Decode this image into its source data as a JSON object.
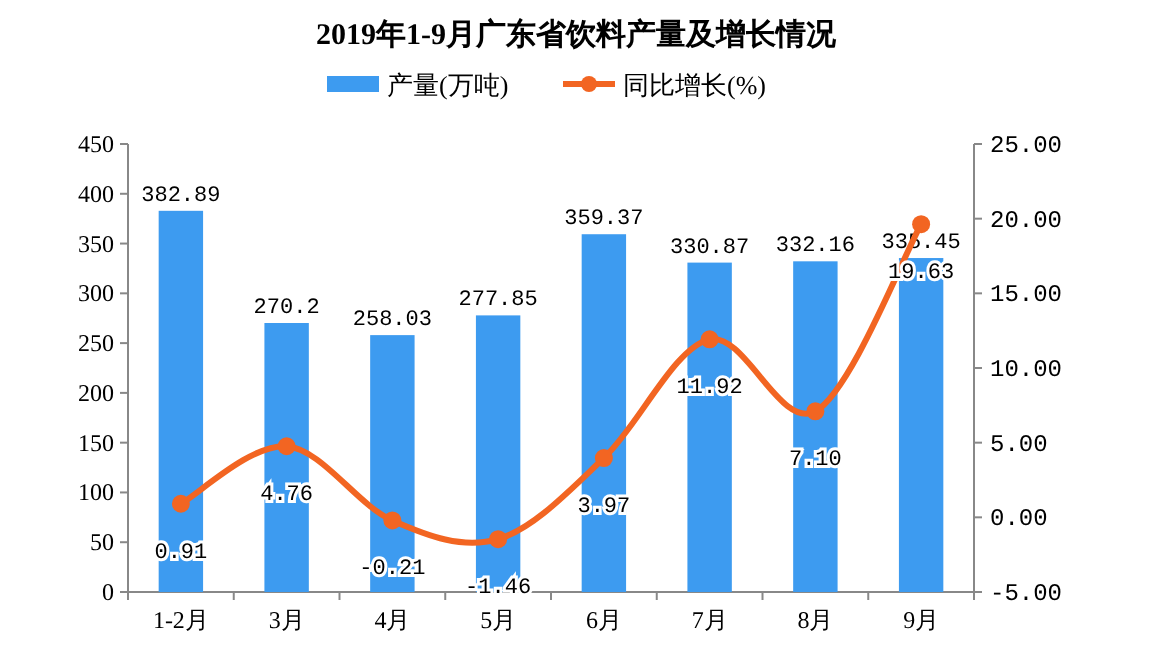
{
  "chart_data": {
    "type": "bar",
    "title": "2019年1-9月广东省饮料产量及增长情况",
    "categories": [
      "1-2月",
      "3月",
      "4月",
      "5月",
      "6月",
      "7月",
      "8月",
      "9月"
    ],
    "series": [
      {
        "name": "产量(万吨)",
        "color": "#3d9bf0",
        "values": [
          382.89,
          270.2,
          258.03,
          277.85,
          359.37,
          330.87,
          332.16,
          335.45
        ]
      },
      {
        "name": "同比增长(%)",
        "type": "line",
        "axis": "y2",
        "color": "#f26522",
        "marker": "circle",
        "values": [
          0.91,
          4.76,
          -0.21,
          -1.46,
          3.97,
          11.92,
          7.1,
          19.63
        ],
        "value_labels": [
          "0.91",
          "4.76",
          "-0.21",
          "-1.46",
          "3.97",
          "11.92",
          "7.10",
          "19.63"
        ]
      }
    ],
    "ylim": [
      0,
      450
    ],
    "yticks": [
      0,
      50,
      100,
      150,
      200,
      250,
      300,
      350,
      400,
      450
    ],
    "y2lim": [
      -5,
      25
    ],
    "y2ticks": [
      {
        "value": -5,
        "label": "-5.00"
      },
      {
        "value": 0,
        "label": "0.00"
      },
      {
        "value": 5,
        "label": "5.00"
      },
      {
        "value": 10,
        "label": "10.00"
      },
      {
        "value": 15,
        "label": "15.00"
      },
      {
        "value": 20,
        "label": "20.00"
      },
      {
        "value": 25,
        "label": "25.00"
      }
    ],
    "data_labels": true,
    "legend": "top",
    "grid": false
  }
}
